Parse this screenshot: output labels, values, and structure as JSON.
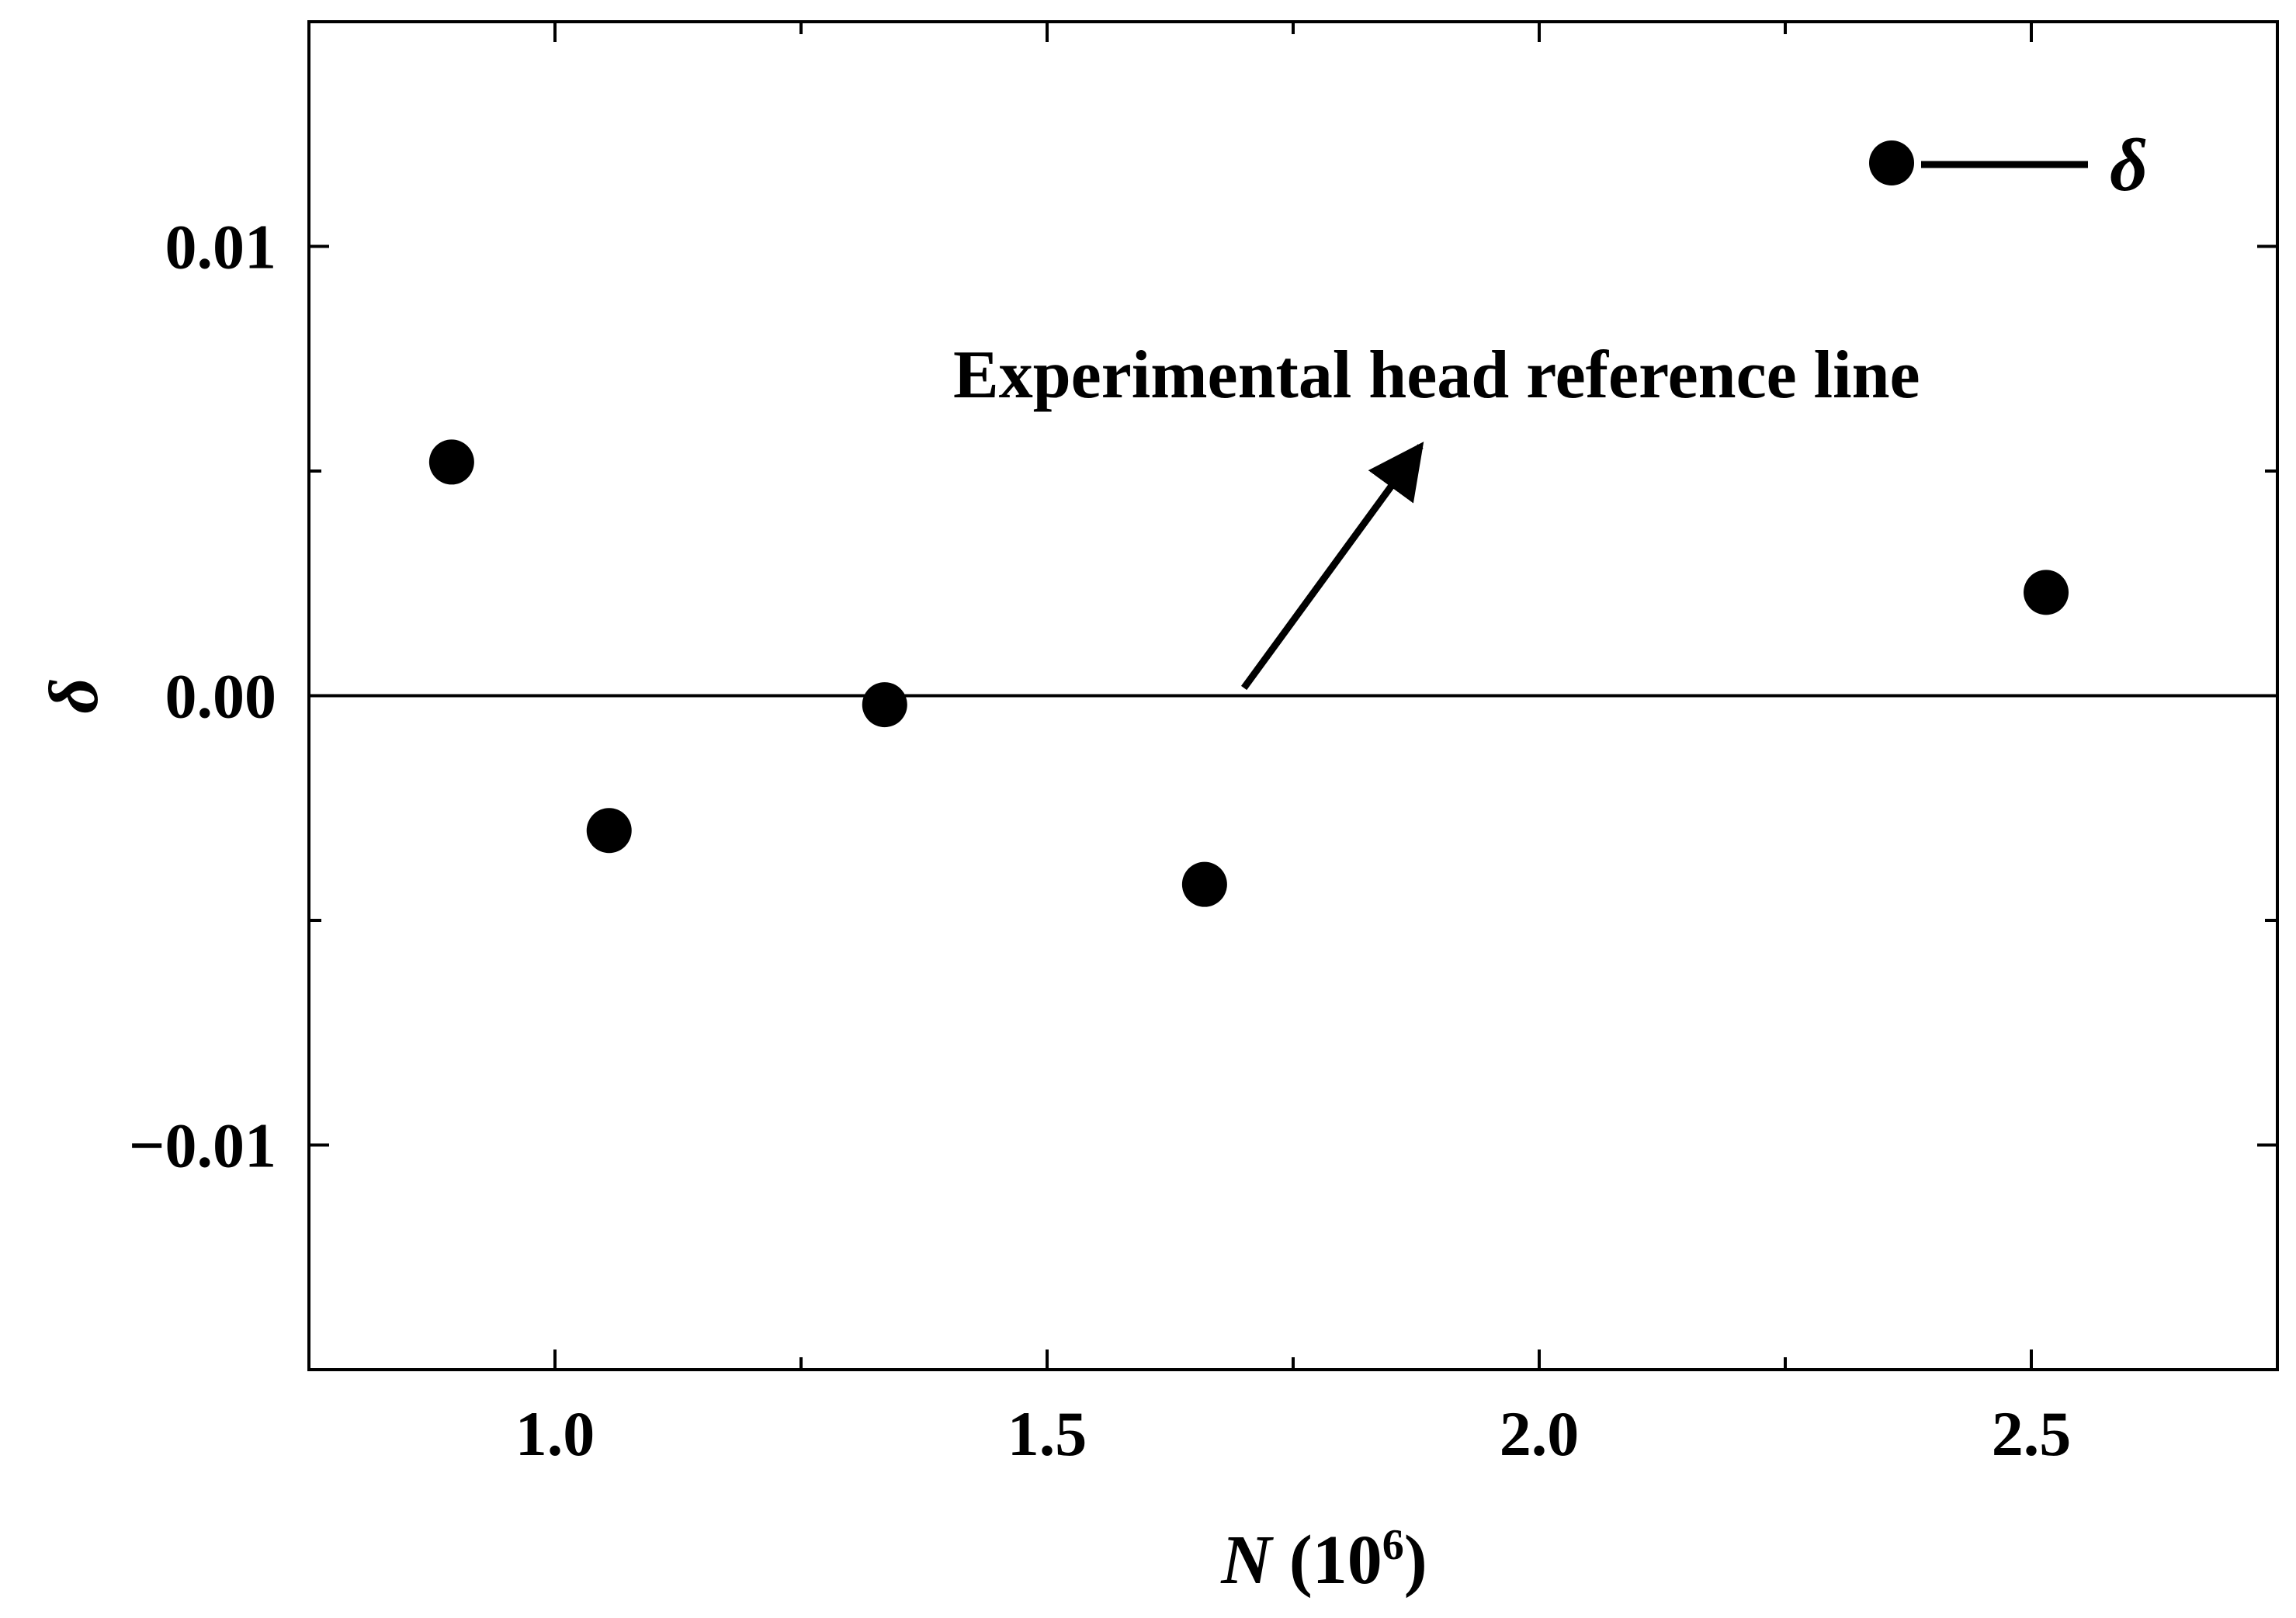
{
  "chart_data": {
    "type": "scatter",
    "xlabel": {
      "var": "N",
      "rest": " (10",
      "sup": "6",
      "close": ")"
    },
    "ylabel": "δ",
    "xlim": [
      0.75,
      2.75
    ],
    "ylim": [
      -0.015,
      0.015
    ],
    "xticks": [
      1.0,
      1.5,
      2.0,
      2.5
    ],
    "xtick_labels": [
      "1.0",
      "1.5",
      "2.0",
      "2.5"
    ],
    "xminor": [
      0.75,
      1.25,
      1.75,
      2.25,
      2.75
    ],
    "yticks": [
      -0.01,
      0.0,
      0.01
    ],
    "ytick_labels": [
      "−0.01",
      "0.00",
      "0.01"
    ],
    "yminor": [
      -0.015,
      -0.005,
      0.005,
      0.015
    ],
    "series": [
      {
        "name": "δ",
        "color": "#000000",
        "marker": "circle",
        "points": [
          {
            "x": 0.895,
            "y": 0.0052
          },
          {
            "x": 1.055,
            "y": -0.003
          },
          {
            "x": 1.335,
            "y": -0.0002
          },
          {
            "x": 1.66,
            "y": -0.0042
          },
          {
            "x": 2.515,
            "y": 0.0023
          }
        ]
      }
    ],
    "reference_line": {
      "y": 0.0
    },
    "annotation": {
      "text": "Experimental head reference line",
      "points_to_x": 1.7,
      "points_to_y": 0.0
    },
    "legend": {
      "position": "top-right",
      "label": "δ"
    },
    "grid": false
  }
}
